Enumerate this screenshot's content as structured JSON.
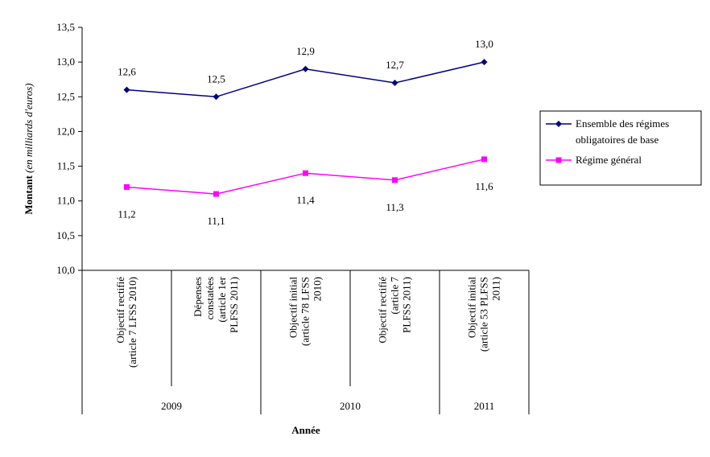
{
  "chart_data": {
    "type": "line",
    "ylabel": "Montant",
    "ylabel_unit": "(en milliards d'euros)",
    "xlabel": "Année",
    "ylim": [
      10.0,
      13.5
    ],
    "yticks": [
      "10,0",
      "10,5",
      "11,0",
      "11,5",
      "12,0",
      "12,5",
      "13,0",
      "13,5"
    ],
    "categories": [
      [
        "Objectif rectifié",
        "(article 7 LFSS 2010)"
      ],
      [
        "Dépenses",
        "constatées",
        "(article 1er",
        "PLFSS 2011)"
      ],
      [
        "Objectif initial",
        "(article 78 LFSS",
        "2010)"
      ],
      [
        "Objectif rectifié",
        "(article 7",
        "PLFSS 2011)"
      ],
      [
        "Objectif initial",
        "(article 53 PLFSS",
        "2011)"
      ]
    ],
    "groups": [
      {
        "label": "2009",
        "span": 2
      },
      {
        "label": "2010",
        "span": 2
      },
      {
        "label": "2011",
        "span": 1
      }
    ],
    "series": [
      {
        "name": "Ensemble des régimes obligatoires de base",
        "legend_lines": [
          "Ensemble des régimes",
          "obligatoires de base"
        ],
        "color": "#000080",
        "marker": "diamond",
        "values": [
          12.6,
          12.5,
          12.9,
          12.7,
          13.0
        ],
        "labels": [
          "12,6",
          "12,5",
          "12,9",
          "12,7",
          "13,0"
        ]
      },
      {
        "name": "Régime général",
        "legend_lines": [
          "Régime général"
        ],
        "color": "#ff00ff",
        "marker": "square",
        "values": [
          11.2,
          11.1,
          11.4,
          11.3,
          11.6
        ],
        "labels": [
          "11,2",
          "11,1",
          "11,4",
          "11,3",
          "11,6"
        ]
      }
    ],
    "grid": false,
    "legend_position": "right"
  }
}
